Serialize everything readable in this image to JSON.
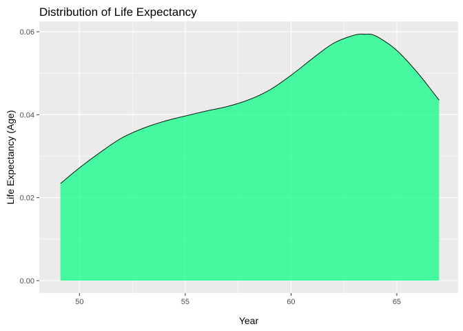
{
  "chart_data": {
    "type": "area",
    "title": "Distribution of Life Expectancy",
    "xlabel": "Year",
    "ylabel": "Life Expectancy (Age)",
    "xlim": [
      48.1,
      67.9
    ],
    "ylim": [
      -0.003,
      0.0625
    ],
    "x_ticks": [
      50,
      55,
      60,
      65
    ],
    "x_tick_labels": [
      "50",
      "55",
      "60",
      "65"
    ],
    "y_ticks": [
      0.0,
      0.02,
      0.04,
      0.06
    ],
    "y_tick_labels": [
      "0.00",
      "0.02",
      "0.04",
      "0.06"
    ],
    "grid": true,
    "legend": "none",
    "fill_color": "#00FF80",
    "fill_opacity": 0.7,
    "line_color": "#000000",
    "panel_color": "#EBEBEB",
    "grid_color": "#FFFFFF",
    "series": [
      {
        "x": [
          49.1,
          50,
          51,
          52,
          53,
          54,
          55,
          56,
          57,
          58,
          59,
          60,
          61,
          62,
          63,
          63.5,
          64,
          65,
          66,
          67
        ],
        "values": [
          0.0234,
          0.0272,
          0.031,
          0.0344,
          0.0367,
          0.0384,
          0.0397,
          0.0409,
          0.042,
          0.0436,
          0.046,
          0.0495,
          0.0535,
          0.0572,
          0.0592,
          0.0594,
          0.059,
          0.0555,
          0.05,
          0.0435
        ]
      }
    ]
  }
}
